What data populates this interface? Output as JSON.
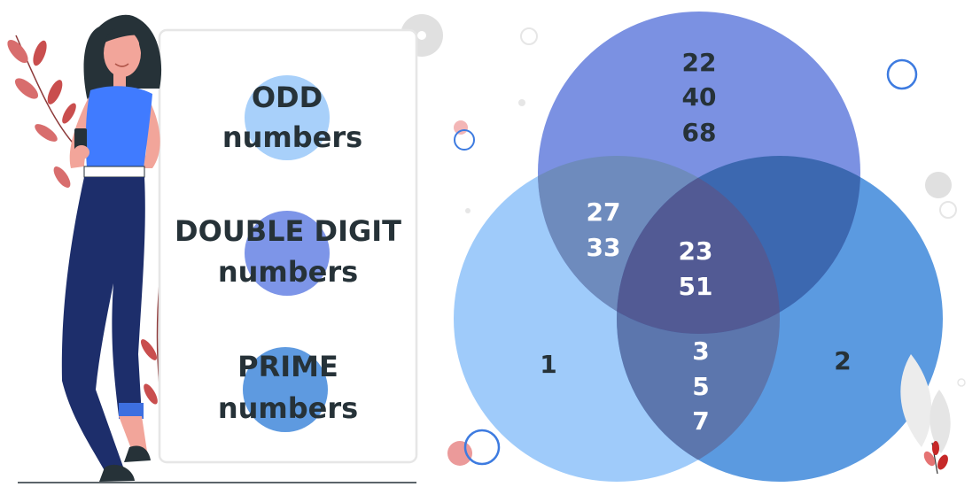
{
  "legend": {
    "odd": {
      "line1": "ODD",
      "line2": "numbers",
      "color": "#A8D0FA"
    },
    "double_digit": {
      "line1": "DOUBLE DIGIT",
      "line2": "numbers",
      "color": "#7D95E8"
    },
    "prime": {
      "line1": "PRIME",
      "line2": "numbers",
      "color": "#5E9AE0"
    }
  },
  "venn": {
    "top_only": [
      "22",
      "40",
      "68"
    ],
    "left_top": [
      "27",
      "33"
    ],
    "center": [
      "23",
      "51"
    ],
    "left_right": [
      "3",
      "5",
      "7"
    ],
    "left_only": [
      "1"
    ],
    "right_only": [
      "2"
    ]
  },
  "colors": {
    "odd_circle": "#9FCBFA",
    "double_digit_circle": "#7088E0",
    "prime_circle": "#5B9AE0",
    "text_dark": "#263238",
    "text_light": "#ffffff",
    "accent": "#E57373"
  },
  "icons": [
    "woman-illustration",
    "leaf-plant-icon",
    "decorative-circles"
  ]
}
